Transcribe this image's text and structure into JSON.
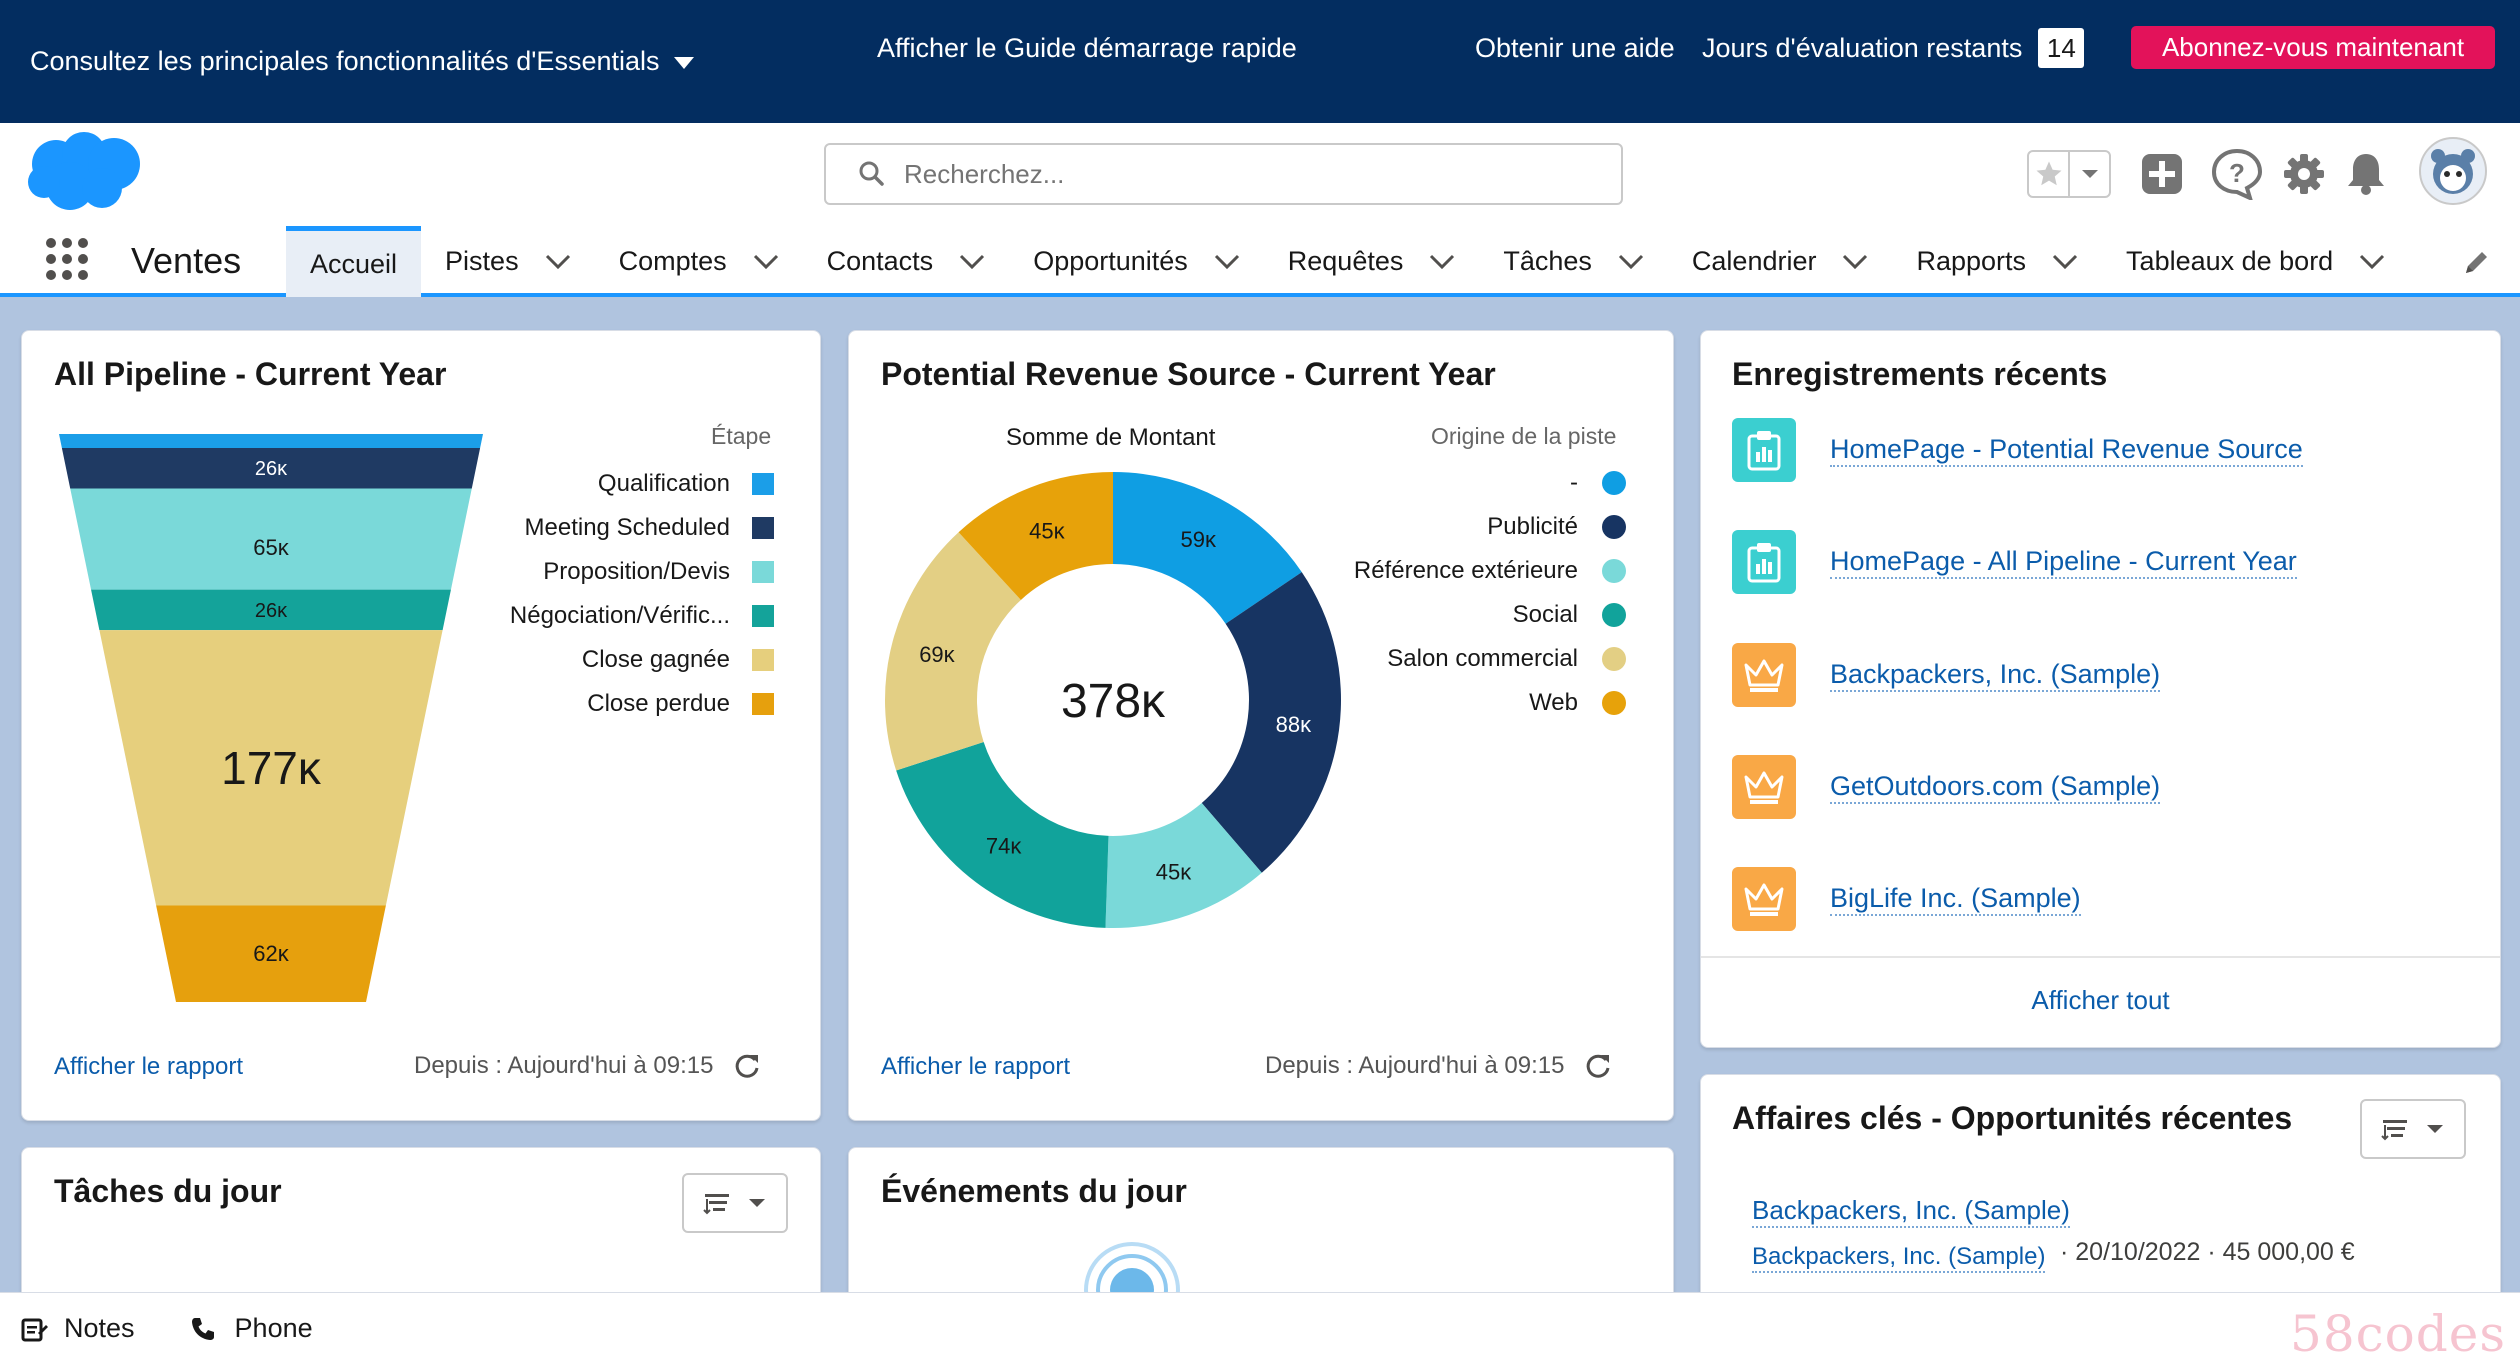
{
  "trial_bar": {
    "features_label": "Consultez les principales fonctionnalités d'Essentials",
    "quick_start": "Afficher le Guide démarrage rapide",
    "get_help": "Obtenir une aide",
    "days_label": "Jours d'évaluation restants",
    "days_value": "14",
    "subscribe": "Abonnez-vous maintenant"
  },
  "header": {
    "search_placeholder": "Recherchez..."
  },
  "nav": {
    "app_name": "Ventes",
    "tabs": [
      {
        "label": "Accueil",
        "active": true,
        "menu": false
      },
      {
        "label": "Pistes",
        "menu": true
      },
      {
        "label": "Comptes",
        "menu": true
      },
      {
        "label": "Contacts",
        "menu": true
      },
      {
        "label": "Opportunités",
        "menu": true
      },
      {
        "label": "Requêtes",
        "menu": true
      },
      {
        "label": "Tâches",
        "menu": true
      },
      {
        "label": "Calendrier",
        "menu": true
      },
      {
        "label": "Rapports",
        "menu": true
      },
      {
        "label": "Tableaux de bord",
        "menu": true
      }
    ]
  },
  "pipeline_card": {
    "title": "All Pipeline - Current Year",
    "legend_title": "Étape",
    "view_report": "Afficher le rapport",
    "since": "Depuis : Aujourd'hui à 09:15"
  },
  "revenue_card": {
    "title": "Potential Revenue Source - Current Year",
    "sum_label": "Somme de Montant",
    "legend_title": "Origine de la piste",
    "total": "378ᴋ",
    "view_report": "Afficher le rapport",
    "since": "Depuis : Aujourd'hui à 09:15"
  },
  "recent_card": {
    "title": "Enregistrements récents",
    "items": [
      {
        "label": "HomePage - Potential Revenue Source",
        "type": "dashboard"
      },
      {
        "label": "HomePage - All Pipeline - Current Year",
        "type": "dashboard"
      },
      {
        "label": "Backpackers, Inc. (Sample)",
        "type": "account"
      },
      {
        "label": "GetOutdoors.com (Sample)",
        "type": "account"
      },
      {
        "label": "BigLife Inc. (Sample)",
        "type": "account"
      }
    ],
    "view_all": "Afficher tout"
  },
  "key_deals_card": {
    "title": "Affaires clés - Opportunités récentes",
    "deal_name": "Backpackers, Inc. (Sample)",
    "deal_account": "Backpackers, Inc. (Sample)",
    "deal_meta": "· 20/10/2022 · 45 000,00 €"
  },
  "tasks_card": {
    "title": "Tâches du jour"
  },
  "events_card": {
    "title": "Événements du jour"
  },
  "utility_bar": {
    "notes": "Notes",
    "phone": "Phone"
  },
  "watermark": "58codes",
  "colors": {
    "accent": "#1b96ff",
    "top_bar": "#032d60",
    "subscribe": "#e3125a",
    "link": "#0b5cab",
    "dashboard_icon": "#3bcfd0",
    "account_icon": "#f9a846"
  },
  "chart_data": [
    {
      "type": "funnel",
      "title": "All Pipeline - Current Year",
      "legend_title": "Étape",
      "categories": [
        "Qualification",
        "Meeting Scheduled",
        "Proposition/Devis",
        "Négociation/Vérific...",
        "Close gagnée",
        "Close perdue"
      ],
      "values": [
        9,
        26,
        65,
        26,
        177,
        62
      ],
      "value_labels": [
        "",
        "26ᴋ",
        "65ᴋ",
        "26ᴋ",
        "177ᴋ",
        "62ᴋ"
      ],
      "colors": [
        "#1b9ee8",
        "#1f3a63",
        "#7ad9d9",
        "#14a39a",
        "#e6cf7d",
        "#e6a00d"
      ]
    },
    {
      "type": "donut",
      "title": "Potential Revenue Source - Current Year",
      "value_label": "Somme de Montant",
      "legend_title": "Origine de la piste",
      "total": "378ᴋ",
      "categories": [
        "-",
        "Publicité",
        "Référence extérieure",
        "Social",
        "Salon commercial",
        "Web"
      ],
      "values": [
        59,
        88,
        45,
        74,
        69,
        45
      ],
      "value_labels": [
        "59ᴋ",
        "88ᴋ",
        "45ᴋ",
        "74ᴋ",
        "69ᴋ",
        "45ᴋ"
      ],
      "colors": [
        "#0f9ee3",
        "#173462",
        "#7ad9d9",
        "#11a39b",
        "#e3cf84",
        "#e7a20a"
      ]
    }
  ]
}
